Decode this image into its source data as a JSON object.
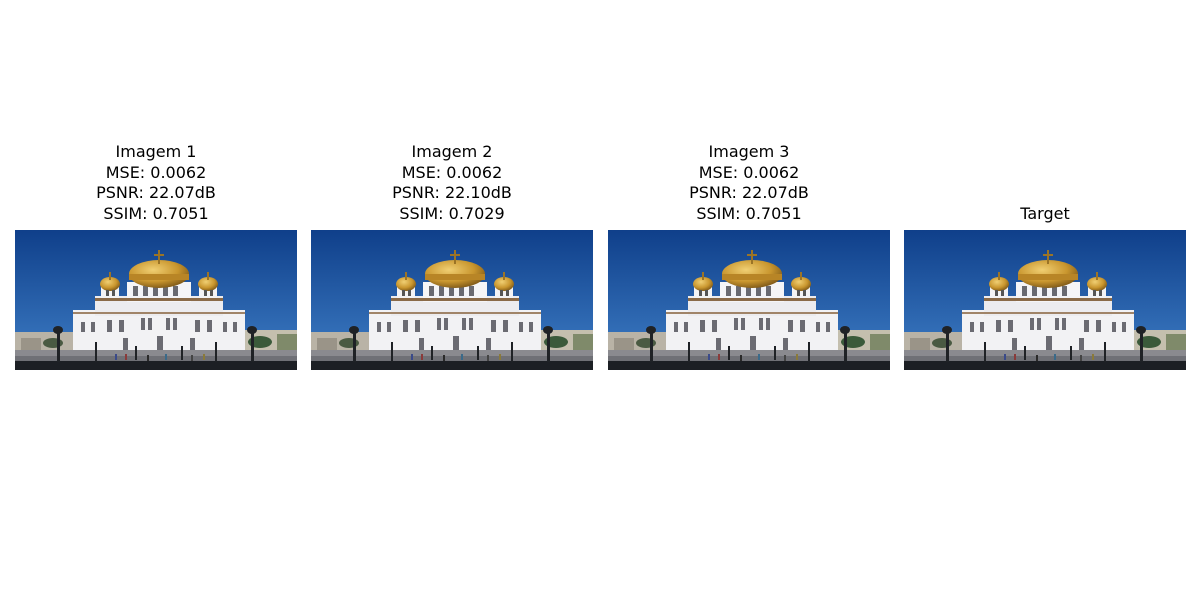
{
  "panels": [
    {
      "title": "Imagem 1",
      "mse": "MSE: 0.0062",
      "psnr": "PSNR: 22.07dB",
      "ssim": "SSIM: 0.7051",
      "blurred": true
    },
    {
      "title": "Imagem 2",
      "mse": "MSE: 0.0062",
      "psnr": "PSNR: 22.10dB",
      "ssim": "SSIM: 0.7029",
      "blurred": true
    },
    {
      "title": "Imagem 3",
      "mse": "MSE: 0.0062",
      "psnr": "PSNR: 22.07dB",
      "ssim": "SSIM: 0.7051",
      "blurred": true
    },
    {
      "title": "Target",
      "blurred": false
    }
  ],
  "colors": {
    "sky_top": "#0f3f8a",
    "sky_bottom": "#3a78c2",
    "dome_gold": "#c9962e",
    "walls": "#f2f2f4",
    "ground": "#8a8a8f",
    "shadow": "#1c1f24"
  }
}
